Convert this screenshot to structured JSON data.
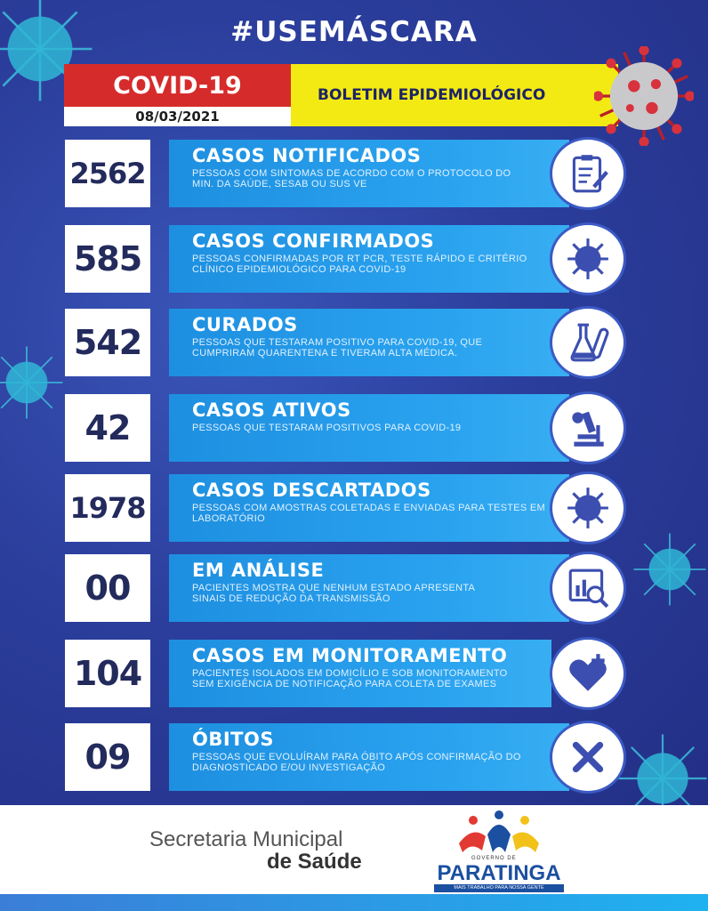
{
  "header": {
    "hashtag": "#USEMÁSCARA",
    "covid_label": "COVID-19",
    "date": "08/03/2021",
    "bulletin_label": "BOLETIM EPIDEMIOLÓGICO"
  },
  "rows": [
    {
      "value": "2562",
      "title": "CASOS NOTIFICADOS",
      "desc": "PESSOAS COM SINTOMAS DE ACORDO COM O PROTOCOLO DO MIN. DA SAÚDE, SESAB OU SUS VE",
      "icon": "clipboard-icon"
    },
    {
      "value": "585",
      "title": "CASOS CONFIRMADOS",
      "desc": "PESSOAS CONFIRMADAS POR RT PCR, TESTE RÁPIDO E CRITÉRIO CLÍNICO EPIDEMIOLÓGICO PARA COVID-19",
      "icon": "virus-icon"
    },
    {
      "value": "542",
      "title": "CURADOS",
      "desc": "PESSOAS QUE TESTARAM POSITIVO PARA COVID-19, QUE CUMPRIRAM QUARENTENA E TIVERAM ALTA MÉDICA.",
      "icon": "lab-flask-icon"
    },
    {
      "value": "42",
      "title": "CASOS ATIVOS",
      "desc": "PESSOAS QUE TESTARAM POSITIVOS PARA COVID-19",
      "icon": "microscope-icon"
    },
    {
      "value": "1978",
      "title": "CASOS DESCARTADOS",
      "desc": "PESSOAS COM AMOSTRAS COLETADAS E ENVIADAS PARA TESTES EM LABORATÓRIO",
      "icon": "virus-icon"
    },
    {
      "value": "00",
      "title": "EM ANÁLISE",
      "desc": "PACIENTES MOSTRA QUE NENHUM ESTADO APRESENTA SINAIS DE REDUÇÃO DA TRANSMISSÃO",
      "icon": "analysis-chart-icon"
    },
    {
      "value": "104",
      "title": "CASOS EM MONITORAMENTO",
      "desc": "PACIENTES ISOLADOS EM DOMICÍLIO E SOB MONITORAMENTO SEM EXIGÊNCIA DE NOTIFICAÇÃO PARA COLETA DE EXAMES",
      "icon": "heart-plus-icon"
    },
    {
      "value": "09",
      "title": "ÓBITOS",
      "desc": "PESSOAS QUE EVOLUÍRAM PARA ÓBITO APÓS CONFIRMAÇÃO DO DIAGNOSTICADO E/OU INVESTIGAÇÃO",
      "icon": "x-mark-icon"
    }
  ],
  "footer": {
    "secretaria_line1": "Secretaria Municipal",
    "secretaria_line2": "de Saúde",
    "logo_gov": "GOVERNO DE",
    "logo_name": "PARATINGA",
    "logo_slogan": "MAIS TRABALHO PARA NOSSA GENTE"
  },
  "colors": {
    "background": "#2a3f9e",
    "red_banner": "#d62b2b",
    "yellow_banner": "#f4ea13",
    "info_blue": "#2aa3ef",
    "number_text": "#232a5c",
    "icon_blue": "#3c4fb0"
  }
}
